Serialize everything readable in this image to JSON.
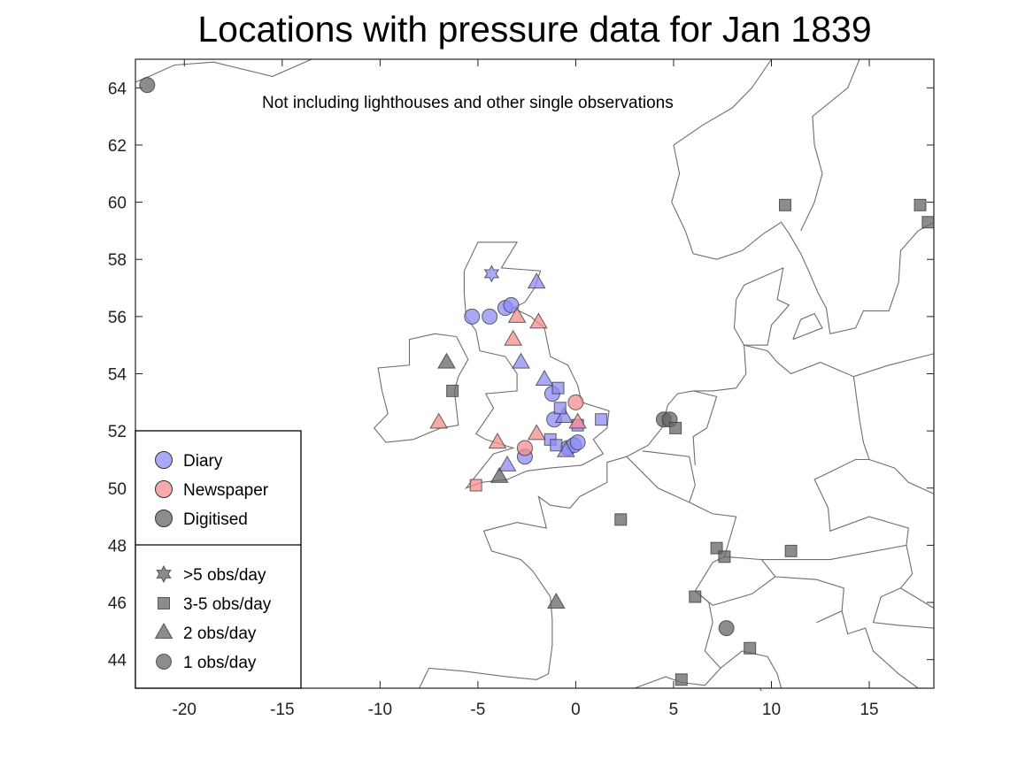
{
  "title": "Locations with pressure data for Jan 1839",
  "chart_data": {
    "type": "scatter",
    "map": true,
    "title": "Locations with pressure data for Jan 1839",
    "annotation": "Not including lighthouses and other single observations",
    "xlim": [
      -22.5,
      18.3
    ],
    "ylim": [
      43,
      65
    ],
    "x_ticks": [
      -20,
      -15,
      -10,
      -5,
      0,
      5,
      10,
      15
    ],
    "y_ticks": [
      44,
      46,
      48,
      50,
      52,
      54,
      56,
      58,
      60,
      62,
      64
    ],
    "grid": false,
    "legend_position": "bottom-left",
    "sources": [
      {
        "key": "diary",
        "label": "Diary",
        "color": "#8c8cf5"
      },
      {
        "key": "newspaper",
        "label": "Newspaper",
        "color": "#f58c8c"
      },
      {
        "key": "digitised",
        "label": "Digitised",
        "color": "#666666"
      }
    ],
    "frequencies": [
      {
        "key": "star",
        "label": ">5 obs/day"
      },
      {
        "key": "square",
        "label": "3-5 obs/day"
      },
      {
        "key": "triangle",
        "label": "2 obs/day"
      },
      {
        "key": "circle",
        "label": "1 obs/day"
      }
    ],
    "points": [
      {
        "lon": -4.3,
        "lat": 57.5,
        "source": "diary",
        "freq": "star"
      },
      {
        "lon": -5.3,
        "lat": 56.0,
        "source": "diary",
        "freq": "circle"
      },
      {
        "lon": -4.4,
        "lat": 56.0,
        "source": "diary",
        "freq": "circle"
      },
      {
        "lon": -3.6,
        "lat": 56.3,
        "source": "diary",
        "freq": "circle"
      },
      {
        "lon": -3.3,
        "lat": 56.4,
        "source": "diary",
        "freq": "circle"
      },
      {
        "lon": -1.2,
        "lat": 53.3,
        "source": "diary",
        "freq": "circle"
      },
      {
        "lon": -1.1,
        "lat": 52.4,
        "source": "diary",
        "freq": "circle"
      },
      {
        "lon": -0.4,
        "lat": 51.4,
        "source": "diary",
        "freq": "circle"
      },
      {
        "lon": -0.1,
        "lat": 51.5,
        "source": "diary",
        "freq": "circle"
      },
      {
        "lon": 0.1,
        "lat": 51.6,
        "source": "diary",
        "freq": "circle"
      },
      {
        "lon": -2.6,
        "lat": 51.1,
        "source": "diary",
        "freq": "circle"
      },
      {
        "lon": -2.0,
        "lat": 57.2,
        "source": "diary",
        "freq": "triangle"
      },
      {
        "lon": -2.8,
        "lat": 54.4,
        "source": "diary",
        "freq": "triangle"
      },
      {
        "lon": -1.6,
        "lat": 53.8,
        "source": "diary",
        "freq": "triangle"
      },
      {
        "lon": -0.6,
        "lat": 52.5,
        "source": "diary",
        "freq": "triangle"
      },
      {
        "lon": -3.5,
        "lat": 50.8,
        "source": "diary",
        "freq": "triangle"
      },
      {
        "lon": -0.5,
        "lat": 51.3,
        "source": "diary",
        "freq": "triangle"
      },
      {
        "lon": -0.9,
        "lat": 53.5,
        "source": "diary",
        "freq": "square"
      },
      {
        "lon": -0.8,
        "lat": 52.8,
        "source": "diary",
        "freq": "square"
      },
      {
        "lon": -1.3,
        "lat": 51.7,
        "source": "diary",
        "freq": "square"
      },
      {
        "lon": -1.0,
        "lat": 51.5,
        "source": "diary",
        "freq": "square"
      },
      {
        "lon": 1.3,
        "lat": 52.4,
        "source": "diary",
        "freq": "square"
      },
      {
        "lon": 0.1,
        "lat": 52.2,
        "source": "diary",
        "freq": "square"
      },
      {
        "lon": 0.0,
        "lat": 53.0,
        "source": "newspaper",
        "freq": "circle"
      },
      {
        "lon": -2.6,
        "lat": 51.4,
        "source": "newspaper",
        "freq": "circle"
      },
      {
        "lon": -3.0,
        "lat": 56.0,
        "source": "newspaper",
        "freq": "triangle"
      },
      {
        "lon": -3.2,
        "lat": 55.2,
        "source": "newspaper",
        "freq": "triangle"
      },
      {
        "lon": -1.9,
        "lat": 55.8,
        "source": "newspaper",
        "freq": "triangle"
      },
      {
        "lon": -7.0,
        "lat": 52.3,
        "source": "newspaper",
        "freq": "triangle"
      },
      {
        "lon": -4.0,
        "lat": 51.6,
        "source": "newspaper",
        "freq": "triangle"
      },
      {
        "lon": -2.0,
        "lat": 51.9,
        "source": "newspaper",
        "freq": "triangle"
      },
      {
        "lon": 0.1,
        "lat": 52.3,
        "source": "newspaper",
        "freq": "triangle"
      },
      {
        "lon": -5.1,
        "lat": 50.1,
        "source": "newspaper",
        "freq": "square"
      },
      {
        "lon": -21.9,
        "lat": 64.1,
        "source": "digitised",
        "freq": "circle"
      },
      {
        "lon": 4.5,
        "lat": 52.4,
        "source": "digitised",
        "freq": "circle"
      },
      {
        "lon": 4.8,
        "lat": 52.4,
        "source": "digitised",
        "freq": "circle"
      },
      {
        "lon": 7.7,
        "lat": 45.1,
        "source": "digitised",
        "freq": "circle"
      },
      {
        "lon": -6.6,
        "lat": 54.4,
        "source": "digitised",
        "freq": "triangle"
      },
      {
        "lon": -3.9,
        "lat": 50.4,
        "source": "digitised",
        "freq": "triangle"
      },
      {
        "lon": -1.0,
        "lat": 46.0,
        "source": "digitised",
        "freq": "triangle"
      },
      {
        "lon": -6.3,
        "lat": 53.4,
        "source": "digitised",
        "freq": "square"
      },
      {
        "lon": 5.1,
        "lat": 52.1,
        "source": "digitised",
        "freq": "square"
      },
      {
        "lon": 2.3,
        "lat": 48.9,
        "source": "digitised",
        "freq": "square"
      },
      {
        "lon": 7.2,
        "lat": 47.9,
        "source": "digitised",
        "freq": "square"
      },
      {
        "lon": 7.6,
        "lat": 47.6,
        "source": "digitised",
        "freq": "square"
      },
      {
        "lon": 11.0,
        "lat": 47.8,
        "source": "digitised",
        "freq": "square"
      },
      {
        "lon": 6.1,
        "lat": 46.2,
        "source": "digitised",
        "freq": "square"
      },
      {
        "lon": 8.9,
        "lat": 44.4,
        "source": "digitised",
        "freq": "square"
      },
      {
        "lon": 5.4,
        "lat": 43.3,
        "source": "digitised",
        "freq": "square"
      },
      {
        "lon": 10.7,
        "lat": 59.9,
        "source": "digitised",
        "freq": "square"
      },
      {
        "lon": 17.6,
        "lat": 59.9,
        "source": "digitised",
        "freq": "square"
      },
      {
        "lon": 18.0,
        "lat": 59.3,
        "source": "digitised",
        "freq": "square"
      }
    ]
  }
}
